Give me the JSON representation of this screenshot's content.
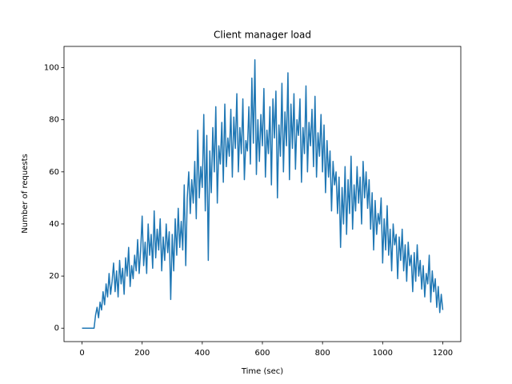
{
  "chart_data": {
    "type": "line",
    "title": "Client manager load",
    "x_label": "Time (sec)",
    "y_label": "Number of requests",
    "color": "#1f77b4",
    "xlim": [
      -60,
      1260
    ],
    "ylim": [
      -5.15,
      108.15
    ],
    "xticks": [
      0,
      200,
      400,
      600,
      800,
      1000,
      1200
    ],
    "yticks": [
      0,
      20,
      40,
      60,
      80,
      100
    ],
    "x": [
      0,
      5,
      10,
      15,
      20,
      25,
      30,
      35,
      40,
      45,
      50,
      55,
      60,
      65,
      70,
      75,
      80,
      85,
      90,
      95,
      100,
      105,
      110,
      115,
      120,
      125,
      130,
      135,
      140,
      145,
      150,
      155,
      160,
      165,
      170,
      175,
      180,
      185,
      190,
      195,
      200,
      205,
      210,
      215,
      220,
      225,
      230,
      235,
      240,
      245,
      250,
      255,
      260,
      265,
      270,
      275,
      280,
      285,
      290,
      295,
      300,
      305,
      310,
      315,
      320,
      325,
      330,
      335,
      340,
      345,
      350,
      355,
      360,
      365,
      370,
      375,
      380,
      385,
      390,
      395,
      400,
      405,
      410,
      415,
      420,
      425,
      430,
      435,
      440,
      445,
      450,
      455,
      460,
      465,
      470,
      475,
      480,
      485,
      490,
      495,
      500,
      505,
      510,
      515,
      520,
      525,
      530,
      535,
      540,
      545,
      550,
      555,
      560,
      565,
      570,
      575,
      580,
      585,
      590,
      595,
      600,
      605,
      610,
      615,
      620,
      625,
      630,
      635,
      640,
      645,
      650,
      655,
      660,
      665,
      670,
      675,
      680,
      685,
      690,
      695,
      700,
      705,
      710,
      715,
      720,
      725,
      730,
      735,
      740,
      745,
      750,
      755,
      760,
      765,
      770,
      775,
      780,
      785,
      790,
      795,
      800,
      805,
      810,
      815,
      820,
      825,
      830,
      835,
      840,
      845,
      850,
      855,
      860,
      865,
      870,
      875,
      880,
      885,
      890,
      895,
      900,
      905,
      910,
      915,
      920,
      925,
      930,
      935,
      940,
      945,
      950,
      955,
      960,
      965,
      970,
      975,
      980,
      985,
      990,
      995,
      1000,
      1005,
      1010,
      1015,
      1020,
      1025,
      1030,
      1035,
      1040,
      1045,
      1050,
      1055,
      1060,
      1065,
      1070,
      1075,
      1080,
      1085,
      1090,
      1095,
      1100,
      1105,
      1110,
      1115,
      1120,
      1125,
      1130,
      1135,
      1140,
      1145,
      1150,
      1155,
      1160,
      1165,
      1170,
      1175,
      1180,
      1185,
      1190,
      1195,
      1200
    ],
    "values": [
      0,
      0,
      0,
      0,
      0,
      0,
      0,
      0,
      0,
      5,
      8,
      4,
      10,
      7,
      14,
      9,
      17,
      12,
      21,
      13,
      18,
      25,
      14,
      22,
      12,
      26,
      17,
      23,
      13,
      27,
      20,
      31,
      16,
      24,
      19,
      28,
      22,
      34,
      21,
      30,
      43,
      24,
      33,
      21,
      40,
      28,
      36,
      23,
      45,
      27,
      38,
      30,
      42,
      22,
      35,
      26,
      40,
      29,
      37,
      11,
      36,
      22,
      42,
      28,
      46,
      31,
      41,
      30,
      55,
      24,
      50,
      60,
      44,
      57,
      48,
      64,
      42,
      76,
      50,
      62,
      54,
      82,
      45,
      74,
      26,
      68,
      52,
      77,
      60,
      85,
      48,
      70,
      63,
      79,
      56,
      86,
      62,
      73,
      66,
      84,
      58,
      81,
      69,
      90,
      60,
      77,
      67,
      88,
      57,
      72,
      68,
      85,
      63,
      96,
      71,
      103,
      59,
      80,
      64,
      82,
      70,
      92,
      58,
      76,
      67,
      85,
      55,
      88,
      73,
      91,
      50,
      78,
      66,
      94,
      60,
      83,
      70,
      98,
      57,
      86,
      69,
      90,
      61,
      80,
      74,
      88,
      56,
      77,
      67,
      93,
      60,
      79,
      70,
      84,
      62,
      89,
      58,
      75,
      66,
      82,
      60,
      78,
      52,
      72,
      58,
      68,
      45,
      64,
      55,
      60,
      44,
      58,
      31,
      54,
      40,
      62,
      36,
      57,
      44,
      66,
      38,
      55,
      45,
      62,
      48,
      58,
      40,
      64,
      50,
      60,
      46,
      57,
      38,
      52,
      30,
      49,
      36,
      44,
      40,
      50,
      25,
      42,
      30,
      47,
      28,
      38,
      22,
      40,
      32,
      36,
      19,
      35,
      26,
      38,
      22,
      32,
      18,
      33,
      24,
      28,
      14,
      29,
      18,
      32,
      20,
      26,
      15,
      24,
      12,
      21,
      17,
      28,
      10,
      22,
      14,
      19,
      8,
      16,
      6,
      13,
      7
    ]
  }
}
